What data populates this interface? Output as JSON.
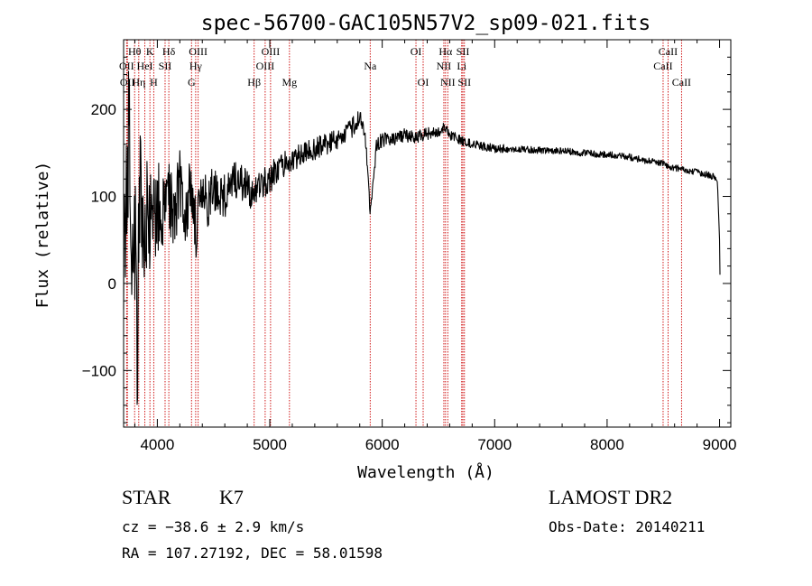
{
  "chart_data": {
    "type": "line",
    "title": "spec-56700-GAC105N57V2_sp09-021.fits",
    "xlabel": "Wavelength (Å)",
    "ylabel": "Flux (relative)",
    "xlim": [
      3700,
      9100
    ],
    "ylim": [
      -165,
      280
    ],
    "xticks": [
      4000,
      5000,
      6000,
      7000,
      8000,
      9000
    ],
    "xtick_labels": [
      "4000",
      "5000",
      "6000",
      "7000",
      "8000",
      "9000"
    ],
    "yticks": [
      -100,
      0,
      100,
      200
    ],
    "ytick_labels": [
      "−100",
      "0",
      "100",
      "200"
    ],
    "grid": false,
    "line_color": "#000000",
    "marker_color": "#cc0000",
    "spectrum_outline": {
      "x": [
        3700,
        3720,
        3750,
        3780,
        3800,
        3820,
        3850,
        3880,
        3900,
        3950,
        4000,
        4050,
        4100,
        4150,
        4200,
        4250,
        4300,
        4350,
        4400,
        4450,
        4500,
        4600,
        4700,
        4800,
        4860,
        4900,
        5000,
        5100,
        5200,
        5300,
        5400,
        5500,
        5600,
        5700,
        5800,
        5850,
        5893,
        5950,
        6000,
        6100,
        6200,
        6300,
        6400,
        6500,
        6563,
        6600,
        6650,
        6700,
        6800,
        7000,
        7200,
        7400,
        7600,
        7800,
        8000,
        8200,
        8400,
        8500,
        8600,
        8700,
        8800,
        8900,
        8980,
        9000,
        9005
      ],
      "y": [
        40,
        60,
        200,
        20,
        60,
        -70,
        120,
        30,
        80,
        60,
        90,
        70,
        110,
        80,
        120,
        80,
        110,
        60,
        100,
        90,
        110,
        100,
        120,
        110,
        100,
        115,
        120,
        135,
        140,
        150,
        155,
        160,
        165,
        175,
        190,
        170,
        80,
        160,
        165,
        165,
        170,
        168,
        172,
        175,
        180,
        170,
        168,
        165,
        160,
        155,
        155,
        153,
        152,
        150,
        148,
        145,
        140,
        137,
        133,
        130,
        128,
        125,
        120,
        50,
        0
      ],
      "noise_amplitude": [
        70,
        80,
        90,
        90,
        90,
        90,
        80,
        70,
        65,
        60,
        55,
        50,
        45,
        45,
        40,
        40,
        38,
        36,
        32,
        30,
        28,
        25,
        22,
        20,
        20,
        18,
        18,
        16,
        15,
        14,
        13,
        13,
        12,
        12,
        12,
        10,
        5,
        9,
        9,
        8,
        8,
        7,
        7,
        6,
        6,
        6,
        6,
        6,
        5,
        5,
        4,
        4,
        4,
        4,
        4,
        4,
        4,
        4,
        4,
        4,
        4,
        4,
        4,
        2,
        0
      ]
    },
    "lines": [
      {
        "wl": 3727,
        "label": "OII",
        "row": 2
      },
      {
        "wl": 3734,
        "label": "OII",
        "row": 3
      },
      {
        "wl": 3798,
        "label": "Hθ",
        "row": 1
      },
      {
        "wl": 3835,
        "label": "Hη",
        "row": 3
      },
      {
        "wl": 3889,
        "label": "HeI",
        "row": 2
      },
      {
        "wl": 3934,
        "label": "K",
        "row": 1
      },
      {
        "wl": 3968,
        "label": "H",
        "row": 3
      },
      {
        "wl": 4069,
        "label": "SII",
        "row": 2
      },
      {
        "wl": 4102,
        "label": "Hδ",
        "row": 1
      },
      {
        "wl": 4304,
        "label": "G",
        "row": 3
      },
      {
        "wl": 4341,
        "label": "Hγ",
        "row": 2
      },
      {
        "wl": 4363,
        "label": "OIII",
        "row": 1
      },
      {
        "wl": 4861,
        "label": "Hβ",
        "row": 3
      },
      {
        "wl": 4959,
        "label": "OIII",
        "row": 2
      },
      {
        "wl": 5007,
        "label": "OIII",
        "row": 1
      },
      {
        "wl": 5175,
        "label": "Mg",
        "row": 3
      },
      {
        "wl": 5893,
        "label": "Na",
        "row": 2
      },
      {
        "wl": 6300,
        "label": "OI",
        "row": 1
      },
      {
        "wl": 6364,
        "label": "OI",
        "row": 3
      },
      {
        "wl": 6548,
        "label": "NII",
        "row": 2
      },
      {
        "wl": 6563,
        "label": "Hα",
        "row": 1
      },
      {
        "wl": 6583,
        "label": "NII",
        "row": 3
      },
      {
        "wl": 6707,
        "label": "Li",
        "row": 2
      },
      {
        "wl": 6717,
        "label": "SII",
        "row": 1
      },
      {
        "wl": 6731,
        "label": "SII",
        "row": 3
      },
      {
        "wl": 8498,
        "label": "CaII",
        "row": 2
      },
      {
        "wl": 8542,
        "label": "CaII",
        "row": 1
      },
      {
        "wl": 8662,
        "label": "CaII",
        "row": 3
      }
    ]
  },
  "info": {
    "class": "STAR",
    "subclass": "K7",
    "survey": "LAMOST DR2",
    "redshift": "cz = −38.6 ± 2.9 km/s",
    "obs_date": "Obs-Date: 20140211",
    "coords": "RA = 107.27192, DEC =  58.01598"
  }
}
